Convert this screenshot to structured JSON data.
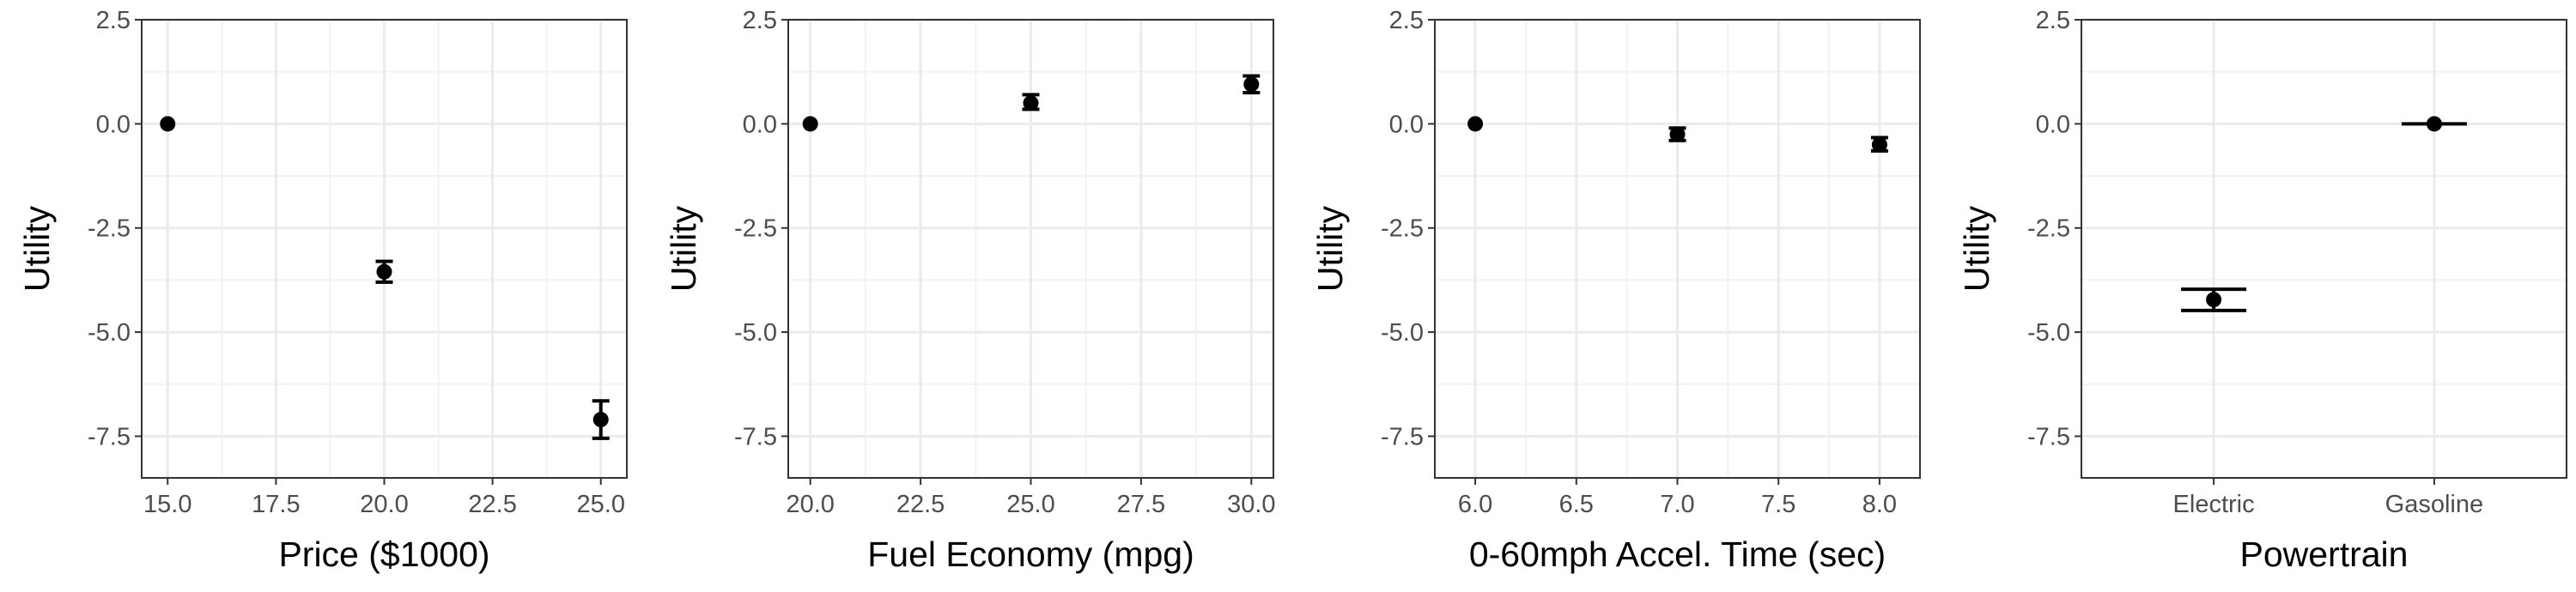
{
  "chart_data": [
    {
      "type": "scatter",
      "xlabel": "Price ($1000)",
      "ylabel": "Utility",
      "x_scale": "continuous",
      "xlim": [
        14.4,
        25.6
      ],
      "ylim": [
        -8.5,
        2.5
      ],
      "x_ticks": [
        "15.0",
        "17.5",
        "20.0",
        "22.5",
        "25.0"
      ],
      "y_ticks": [
        "2.5",
        "0.0",
        "-2.5",
        "-5.0",
        "-7.5"
      ],
      "grid": true,
      "points": [
        {
          "x": 15,
          "y": 0.0,
          "lower": 0.0,
          "upper": 0.0
        },
        {
          "x": 20,
          "y": -3.55,
          "lower": -3.8,
          "upper": -3.3
        },
        {
          "x": 25,
          "y": -7.1,
          "lower": -7.55,
          "upper": -6.65
        }
      ]
    },
    {
      "type": "scatter",
      "xlabel": "Fuel Economy (mpg)",
      "ylabel": "Utility",
      "x_scale": "continuous",
      "xlim": [
        19.5,
        30.5
      ],
      "ylim": [
        -8.5,
        2.5
      ],
      "x_ticks": [
        "20.0",
        "22.5",
        "25.0",
        "27.5",
        "30.0"
      ],
      "y_ticks": [
        "2.5",
        "0.0",
        "-2.5",
        "-5.0",
        "-7.5"
      ],
      "grid": true,
      "points": [
        {
          "x": 20,
          "y": 0.0,
          "lower": 0.0,
          "upper": 0.0
        },
        {
          "x": 25,
          "y": 0.5,
          "lower": 0.35,
          "upper": 0.7
        },
        {
          "x": 30,
          "y": 0.95,
          "lower": 0.75,
          "upper": 1.15
        }
      ]
    },
    {
      "type": "scatter",
      "xlabel": "0-60mph Accel. Time (sec)",
      "ylabel": "Utility",
      "x_scale": "continuous",
      "xlim": [
        5.8,
        8.2
      ],
      "ylim": [
        -8.5,
        2.5
      ],
      "x_ticks": [
        "6.0",
        "6.5",
        "7.0",
        "7.5",
        "8.0"
      ],
      "y_ticks": [
        "2.5",
        "0.0",
        "-2.5",
        "-5.0",
        "-7.5"
      ],
      "grid": true,
      "points": [
        {
          "x": 6,
          "y": 0.0,
          "lower": 0.0,
          "upper": 0.0
        },
        {
          "x": 7,
          "y": -0.25,
          "lower": -0.4,
          "upper": -0.1
        },
        {
          "x": 8,
          "y": -0.5,
          "lower": -0.65,
          "upper": -0.33
        }
      ]
    },
    {
      "type": "scatter",
      "xlabel": "Powertrain",
      "ylabel": "Utility",
      "x_scale": "categorical",
      "categories": [
        "Electric",
        "Gasoline"
      ],
      "ylim": [
        -8.5,
        2.5
      ],
      "y_ticks": [
        "2.5",
        "0.0",
        "-2.5",
        "-5.0",
        "-7.5"
      ],
      "grid": true,
      "points": [
        {
          "x": "Electric",
          "y": -4.22,
          "lower": -4.48,
          "upper": -3.97
        },
        {
          "x": "Gasoline",
          "y": 0.0,
          "lower": 0.0,
          "upper": 0.0
        }
      ]
    }
  ]
}
